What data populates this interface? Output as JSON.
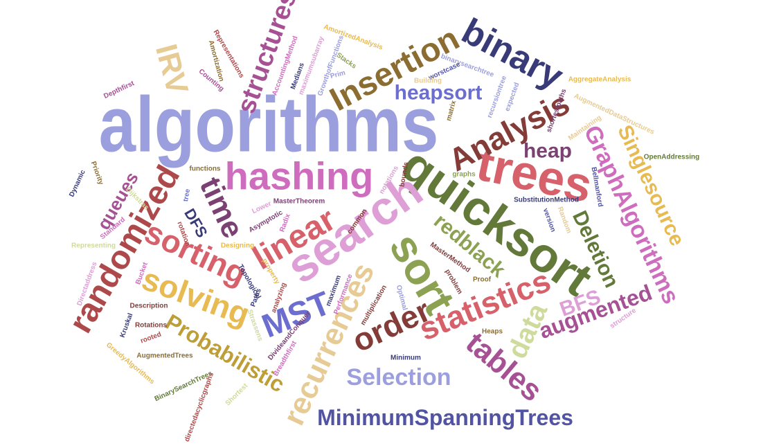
{
  "word_cloud": {
    "words": [
      {
        "text": "algorithms",
        "color": "#9b9fdd"
      },
      {
        "text": "quicksort",
        "color": "#637939"
      },
      {
        "text": "trees",
        "color": "#d6616b"
      },
      {
        "text": "search",
        "color": "#de9ed6"
      },
      {
        "text": "hashing",
        "color": "#ce6dbd"
      },
      {
        "text": "binary",
        "color": "#393b79"
      },
      {
        "text": "Insertion",
        "color": "#8c6d31"
      },
      {
        "text": "Analysis",
        "color": "#843c39"
      },
      {
        "text": "sort",
        "color": "#8ca252"
      },
      {
        "text": "linear",
        "color": "#d6616b"
      },
      {
        "text": "randomized",
        "color": "#ad494a"
      },
      {
        "text": "sorting",
        "color": "#d6616b"
      },
      {
        "text": "solving",
        "color": "#e7ba52"
      },
      {
        "text": "MST",
        "color": "#6b6ecf"
      },
      {
        "text": "order",
        "color": "#843c39"
      },
      {
        "text": "statistics",
        "color": "#d6616b"
      },
      {
        "text": "recurrences",
        "color": "#e7cb94"
      },
      {
        "text": "structures",
        "color": "#a55194"
      },
      {
        "text": "time",
        "color": "#7b4173"
      },
      {
        "text": "IRV",
        "color": "#e7cb94"
      },
      {
        "text": "heapsort",
        "color": "#6b6ecf"
      },
      {
        "text": "heap",
        "color": "#7b4173"
      },
      {
        "text": "GraphAlgorithms",
        "color": "#ce6dbd"
      },
      {
        "text": "Singlesource",
        "color": "#e7ba52"
      },
      {
        "text": "Deletion",
        "color": "#637939"
      },
      {
        "text": "redblack",
        "color": "#8ca252"
      },
      {
        "text": "augmented",
        "color": "#a55194"
      },
      {
        "text": "BFS",
        "color": "#de9ed6"
      },
      {
        "text": "data",
        "color": "#cedb9c"
      },
      {
        "text": "tables",
        "color": "#a55194"
      },
      {
        "text": "Selection",
        "color": "#9c9ede"
      },
      {
        "text": "Probabilistic",
        "color": "#bd9e39"
      },
      {
        "text": "MinimumSpanningTrees",
        "color": "#5254a3"
      },
      {
        "text": "queues",
        "color": "#a55194"
      },
      {
        "text": "DFS",
        "color": "#393b79"
      },
      {
        "text": "AmortizedAnalysis",
        "color": "#e7ba52"
      },
      {
        "text": "binarysearchtree",
        "color": "#9c9ede"
      },
      {
        "text": "AggregateAnalysis",
        "color": "#e7ba52"
      },
      {
        "text": "AugmentedDataStructures",
        "color": "#e7cb94"
      },
      {
        "text": "OpenAddressing",
        "color": "#637939"
      },
      {
        "text": "SubstitutionMethod",
        "color": "#393b79"
      },
      {
        "text": "MasterTheorem",
        "color": "#7b4173"
      },
      {
        "text": "DivideandConquer",
        "color": "#7b4173"
      },
      {
        "text": "GreedyAlgorithms",
        "color": "#e7ba52"
      },
      {
        "text": "BinarySearchTrees",
        "color": "#637939"
      },
      {
        "text": "AugmentedTrees",
        "color": "#8c6d31"
      },
      {
        "text": "directedacyclicgraphs",
        "color": "#ad494a"
      },
      {
        "text": "Representations",
        "color": "#ad494a"
      },
      {
        "text": "AccountingMethod",
        "color": "#ce6dbd"
      },
      {
        "text": "maximumsubarray",
        "color": "#de9ed6"
      },
      {
        "text": "GrowthofFunctions",
        "color": "#9c9ede"
      },
      {
        "text": "shortestpaths",
        "color": "#7b4173"
      },
      {
        "text": "recursiontree",
        "color": "#9c9ede"
      },
      {
        "text": "Maintaining",
        "color": "#e7cb94"
      },
      {
        "text": "Bellmanford",
        "color": "#5254a3"
      },
      {
        "text": "worstcase",
        "color": "#5254a3"
      },
      {
        "text": "Building",
        "color": "#e7cb94"
      },
      {
        "text": "expected",
        "color": "#9c9ede"
      },
      {
        "text": "matrix",
        "color": "#8c6d31"
      },
      {
        "text": "Prim",
        "color": "#9c9ede"
      },
      {
        "text": "Stacks",
        "color": "#8ca252"
      },
      {
        "text": "Medians",
        "color": "#393b79"
      },
      {
        "text": "Amortization",
        "color": "#8c6d31"
      },
      {
        "text": "Counting",
        "color": "#a55194"
      },
      {
        "text": "Depthfirst",
        "color": "#a55194"
      },
      {
        "text": "Dynamic",
        "color": "#393b79"
      },
      {
        "text": "Priority",
        "color": "#8c6d31"
      },
      {
        "text": "functions",
        "color": "#8c6d31"
      },
      {
        "text": "graphs",
        "color": "#8ca252"
      },
      {
        "text": "notations",
        "color": "#de9ed6"
      },
      {
        "text": "bounds",
        "color": "#843c39"
      },
      {
        "text": "Dijkstras",
        "color": "#cedb9c"
      },
      {
        "text": "tree",
        "color": "#6b6ecf"
      },
      {
        "text": "Standard",
        "color": "#ce6dbd"
      },
      {
        "text": "Representing",
        "color": "#cedb9c"
      },
      {
        "text": "rotation",
        "color": "#ad494a"
      },
      {
        "text": "Designing",
        "color": "#e7ba52"
      },
      {
        "text": "Lower",
        "color": "#de9ed6"
      },
      {
        "text": "Asymptotic",
        "color": "#7b4173"
      },
      {
        "text": "Radix",
        "color": "#ce6dbd"
      },
      {
        "text": "common",
        "color": "#843c39"
      },
      {
        "text": "version",
        "color": "#5254a3"
      },
      {
        "text": "Random",
        "color": "#e7cb94"
      },
      {
        "text": "MasterMethod",
        "color": "#843c39"
      },
      {
        "text": "problem",
        "color": "#843c39"
      },
      {
        "text": "Proof",
        "color": "#8c6d31"
      },
      {
        "text": "property",
        "color": "#e7ba52"
      },
      {
        "text": "Topological",
        "color": "#393b79"
      },
      {
        "text": "maximum",
        "color": "#393b79"
      },
      {
        "text": "Performance",
        "color": "#ce6dbd"
      },
      {
        "text": "multiplication",
        "color": "#843c39"
      },
      {
        "text": "Optimal",
        "color": "#9c9ede"
      },
      {
        "text": "Directaddress",
        "color": "#de9ed6"
      },
      {
        "text": "Bucket",
        "color": "#ce6dbd"
      },
      {
        "text": "Paths",
        "color": "#393b79"
      },
      {
        "text": "analyzing",
        "color": "#ad494a"
      },
      {
        "text": "Description",
        "color": "#843c39"
      },
      {
        "text": "Kruskal",
        "color": "#393b79"
      },
      {
        "text": "Rotations",
        "color": "#843c39"
      },
      {
        "text": "rooted",
        "color": "#ad494a"
      },
      {
        "text": "Strassens",
        "color": "#cedb9c"
      },
      {
        "text": "Breadthfirst",
        "color": "#ce6dbd"
      },
      {
        "text": "Heaps",
        "color": "#8c6d31"
      },
      {
        "text": "Minimum",
        "color": "#393b79"
      },
      {
        "text": "structure",
        "color": "#de9ed6"
      },
      {
        "text": "Shortest",
        "color": "#cedb9c"
      }
    ]
  }
}
